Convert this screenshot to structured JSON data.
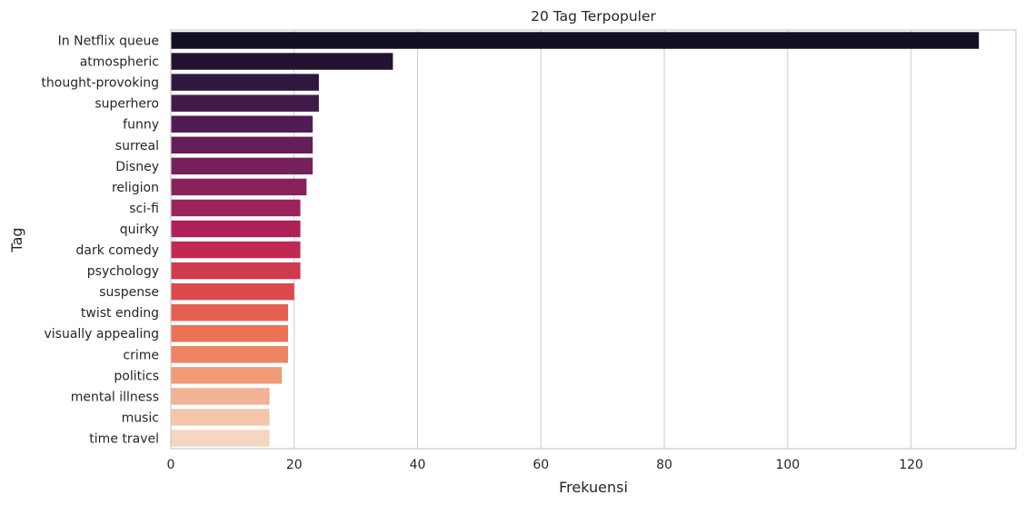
{
  "chart_data": {
    "type": "bar",
    "orientation": "horizontal",
    "title": "20 Tag Terpopuler",
    "xlabel": "Frekuensi",
    "ylabel": "Tag",
    "categories": [
      "In Netflix queue",
      "atmospheric",
      "thought-provoking",
      "superhero",
      "funny",
      "surreal",
      "Disney",
      "religion",
      "sci-fi",
      "quirky",
      "dark comedy",
      "psychology",
      "suspense",
      "twist ending",
      "visually appealing",
      "crime",
      "politics",
      "mental illness",
      "music",
      "time travel"
    ],
    "values": [
      131,
      36,
      24,
      24,
      23,
      23,
      23,
      22,
      21,
      21,
      21,
      21,
      20,
      19,
      19,
      19,
      18,
      16,
      16,
      16
    ],
    "xlim": [
      0,
      137
    ],
    "xticks": [
      0,
      20,
      40,
      60,
      80,
      100,
      120
    ],
    "grid": "vertical",
    "bar_colors": [
      "#140e24",
      "#221331",
      "#2f1840",
      "#401b4a",
      "#4f1d53",
      "#621f58",
      "#75215c",
      "#88225c",
      "#9c225b",
      "#ae2058",
      "#c02853",
      "#cf3a4f",
      "#dc4a4d",
      "#e5604f",
      "#ea7356",
      "#ed8461",
      "#ef9c76",
      "#f1b393",
      "#f3c6ab",
      "#f5d6c1"
    ],
    "grid_color": "#cccccc",
    "spine_color": "#cccccc"
  }
}
